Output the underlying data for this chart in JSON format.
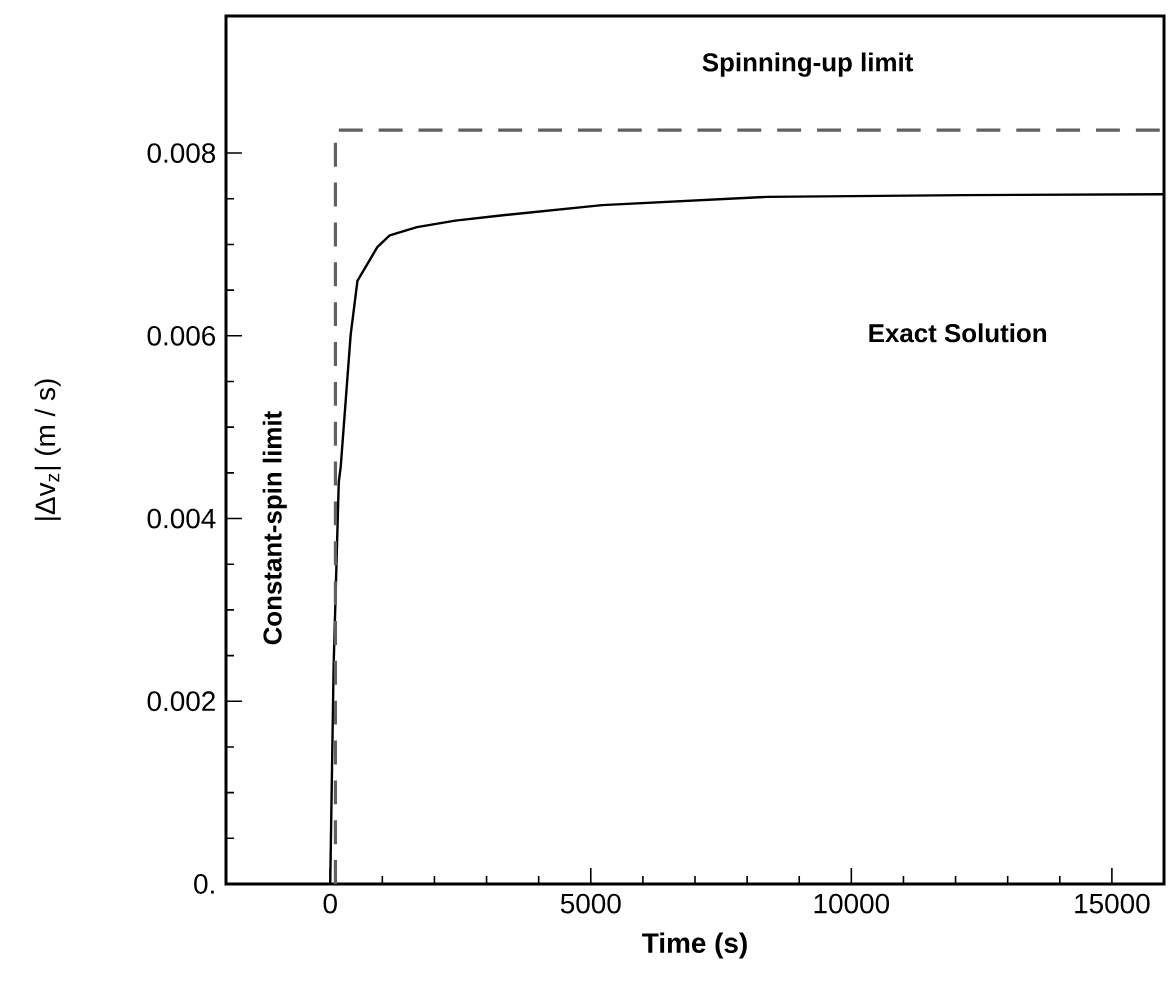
{
  "chart_data": {
    "type": "line",
    "xlabel": "Time (s)",
    "ylabel": "|Δv$_{z}$|  (m / s)",
    "xlim": [
      -2000,
      16000
    ],
    "ylim": [
      0,
      0.0095
    ],
    "xticks": [
      0,
      5000,
      10000,
      15000
    ],
    "yticks": [
      {
        "value": 0,
        "label": "0."
      },
      0.002,
      0.004,
      0.006,
      0.008
    ],
    "grid": false,
    "series": [
      {
        "color": "#000000",
        "line_style": "solid",
        "x": [
          0,
          65,
          164,
          202,
          392,
          522,
          903,
          1142,
          1664,
          2400,
          3313,
          5217,
          8378,
          12186,
          16000
        ],
        "values": [
          0,
          0.00238,
          0.0044,
          0.00457,
          0.00601,
          0.0066,
          0.00697,
          0.0071,
          0.00719,
          0.00726,
          0.00732,
          0.00743,
          0.00752,
          0.00754,
          0.00755
        ]
      },
      {
        "color": "#606060",
        "line_style": "dashed",
        "x": [
          100,
          100,
          16000
        ],
        "values": [
          0,
          0.00825,
          0.00825
        ]
      }
    ],
    "annotations": [
      "Spinning-up limit",
      "Constant-spin limit",
      "Exact Solution"
    ]
  }
}
